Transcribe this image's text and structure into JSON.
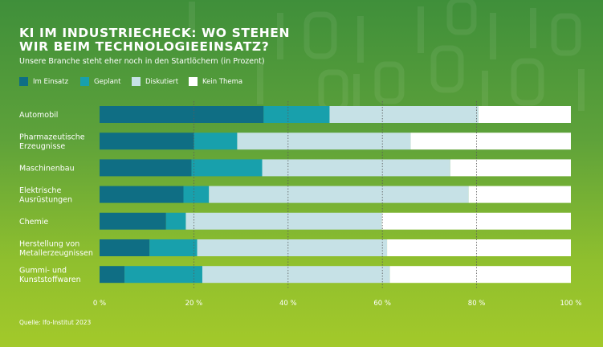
{
  "header": {
    "title": "KI IM INDUSTRIECHECK: WO STEHEN WIR BEIM TECHNOLOGIEEINSATZ?",
    "subtitle": "Unsere Branche steht eher noch in den Startlöchern (in Prozent)"
  },
  "footer": {
    "source": "Quelle: Ifo-Institut 2023"
  },
  "colors": {
    "im_einsatz": "#0f6e84",
    "geplant": "#18a0ac",
    "diskutiert": "#c6e1e6",
    "kein_thema": "#ffffff",
    "text": "#ffffff",
    "gridline": "#5a5a5a"
  },
  "chart_data": {
    "type": "bar",
    "orientation": "horizontal",
    "stacked": true,
    "categories": [
      "Automobil",
      "Pharmazeutische Erzeugnisse",
      "Maschinenbau",
      "Elektrische Ausrüstungen",
      "Chemie",
      "Herstellung von Metallerzeugnissen",
      "Gummi- und Kunststoffwaren"
    ],
    "category_lines": [
      [
        "Automobil"
      ],
      [
        "Pharmazeutische",
        "Erzeugnisse"
      ],
      [
        "Maschinenbau"
      ],
      [
        "Elektrische",
        "Ausrüstungen"
      ],
      [
        "Chemie"
      ],
      [
        "Herstellung von",
        "Metallerzeugnissen"
      ],
      [
        "Gummi- und",
        "Kunststoffwaren"
      ]
    ],
    "series": [
      {
        "name": "Im Einsatz",
        "color": "#0f6e84",
        "values": [
          34.8,
          20.0,
          19.5,
          17.8,
          14.1,
          10.6,
          5.3
        ]
      },
      {
        "name": "Geplant",
        "color": "#18a0ac",
        "values": [
          14.0,
          9.2,
          15.0,
          5.4,
          4.2,
          10.1,
          16.5
        ]
      },
      {
        "name": "Diskutiert",
        "color": "#c6e1e6",
        "values": [
          31.6,
          36.8,
          39.9,
          55.1,
          41.6,
          40.3,
          39.8
        ]
      },
      {
        "name": "Kein Thema",
        "color": "#ffffff",
        "values": [
          19.6,
          34.0,
          25.6,
          21.7,
          40.1,
          39.0,
          38.4
        ]
      }
    ],
    "xlim": [
      0,
      100
    ],
    "xticks": [
      0,
      20,
      40,
      60,
      80,
      100
    ],
    "xtick_labels": [
      "0 %",
      "20 %",
      "40 %",
      "60 %",
      "80 %",
      "100 %"
    ],
    "grid": true,
    "legend": "top-left"
  }
}
